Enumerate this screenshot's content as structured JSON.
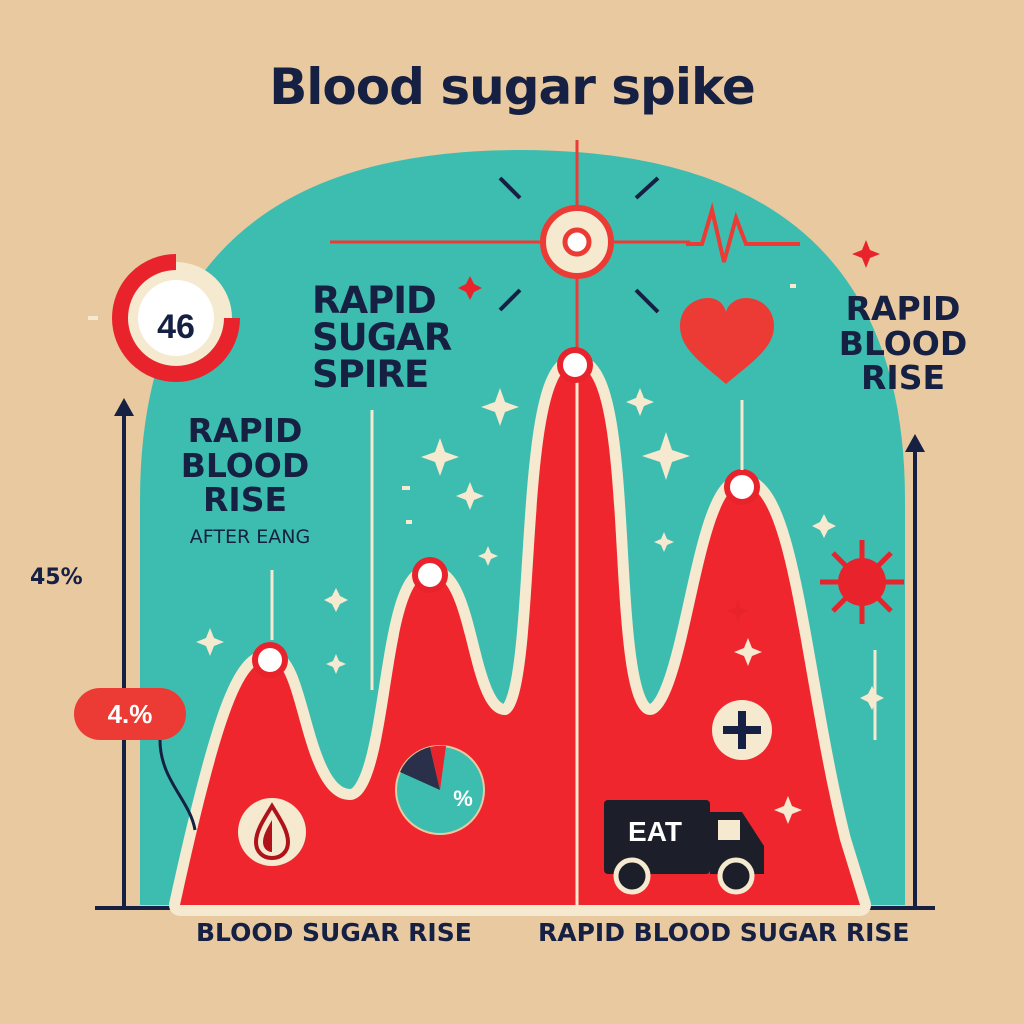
{
  "title": "Blood sugar spike",
  "labels": {
    "rapid_sugar_spike": "RAPID SUGAR SPIRE",
    "left_rise": "RAPID BLOOD RISE",
    "left_rise_sub": "AFTER EANG",
    "right_rise": "RAPID BLOOD RISE",
    "percent_left": "45%",
    "percent_badge": "4.%",
    "gauge_value": "46",
    "pie_value": "%",
    "truck_text": "EAT",
    "bottom_left": "BLOOD SUGAR RISE",
    "bottom_right": "RAPID BLOOD SUGAR RISE"
  },
  "colors": {
    "background": "#e9c9a0",
    "panel": "#3dbdb0",
    "curve_fill": "#f0262e",
    "curve_outline": "#f5e9cf",
    "text": "#152042",
    "accent_red": "#e8232b",
    "badge": "#ec3b34"
  },
  "icons": [
    "gauge-icon",
    "heart-icon",
    "heartbeat-icon",
    "virus-icon",
    "plus-icon",
    "drop-icon",
    "pie-icon",
    "truck-icon",
    "sparkle-icon",
    "target-icon"
  ]
}
